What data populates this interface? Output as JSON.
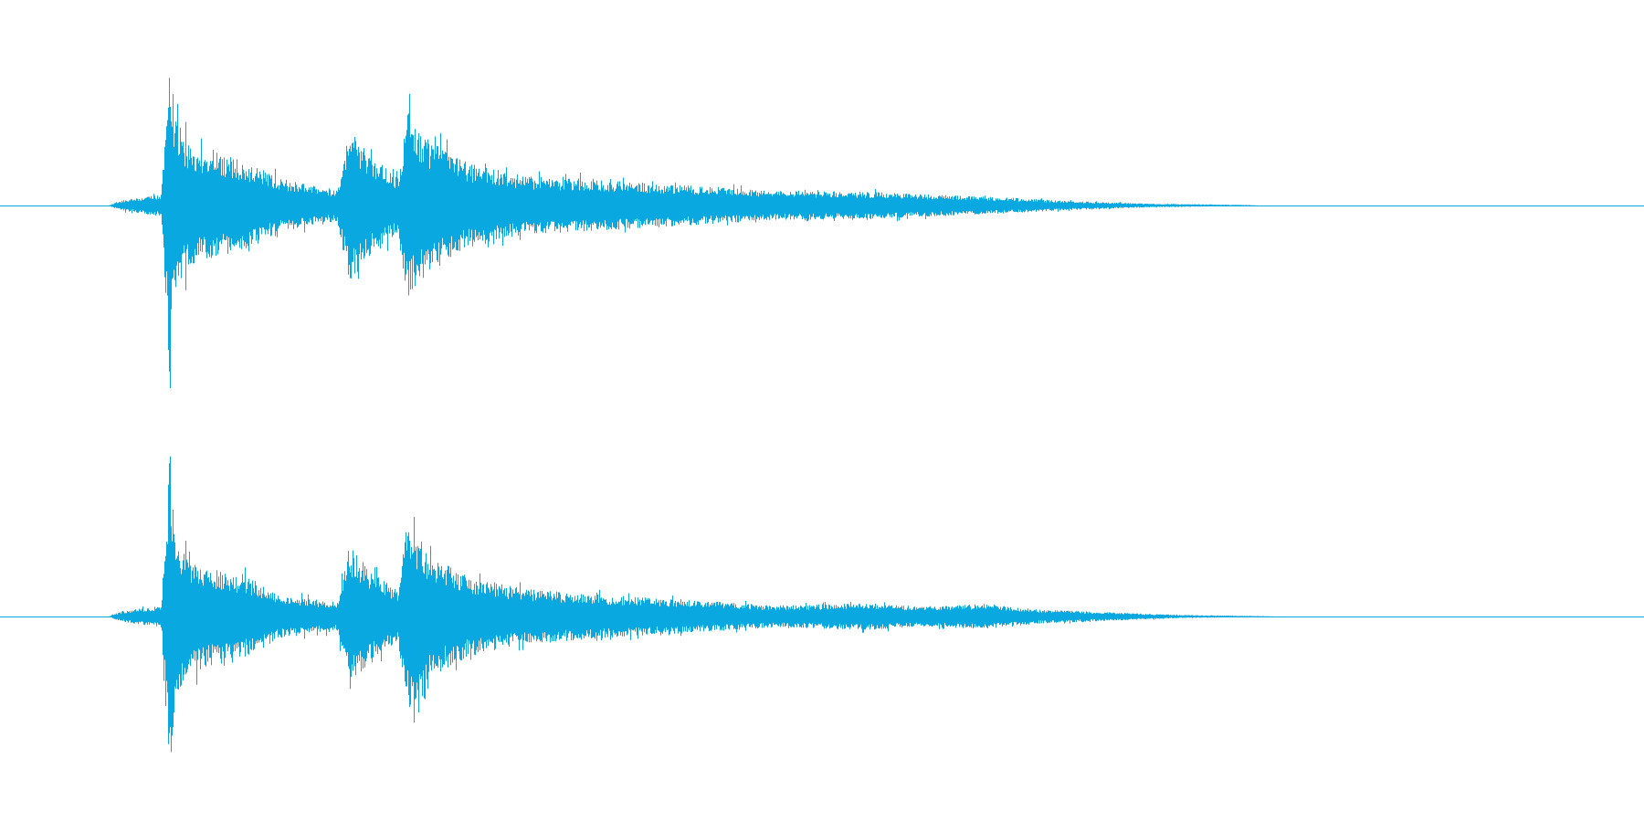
{
  "waveform": {
    "color": "#0aa8e0",
    "channels": [
      {
        "name": "",
        "envelope": [
          {
            "t": 0.0,
            "a": 0.0
          },
          {
            "t": 0.066,
            "a": 0.0
          },
          {
            "t": 0.068,
            "a": 0.01
          },
          {
            "t": 0.075,
            "a": 0.03
          },
          {
            "t": 0.098,
            "a": 0.06
          },
          {
            "t": 0.103,
            "a": 0.95
          },
          {
            "t": 0.106,
            "a": 0.48
          },
          {
            "t": 0.116,
            "a": 0.33
          },
          {
            "t": 0.13,
            "a": 0.29
          },
          {
            "t": 0.15,
            "a": 0.24
          },
          {
            "t": 0.17,
            "a": 0.15
          },
          {
            "t": 0.195,
            "a": 0.1
          },
          {
            "t": 0.205,
            "a": 0.09
          },
          {
            "t": 0.212,
            "a": 0.42
          },
          {
            "t": 0.225,
            "a": 0.28
          },
          {
            "t": 0.242,
            "a": 0.15
          },
          {
            "t": 0.247,
            "a": 0.52
          },
          {
            "t": 0.262,
            "a": 0.35
          },
          {
            "t": 0.285,
            "a": 0.23
          },
          {
            "t": 0.32,
            "a": 0.16
          },
          {
            "t": 0.365,
            "a": 0.14
          },
          {
            "t": 0.42,
            "a": 0.11
          },
          {
            "t": 0.47,
            "a": 0.08
          },
          {
            "t": 0.53,
            "a": 0.075
          },
          {
            "t": 0.58,
            "a": 0.055
          },
          {
            "t": 0.62,
            "a": 0.04
          },
          {
            "t": 0.65,
            "a": 0.025
          },
          {
            "t": 0.7,
            "a": 0.01
          },
          {
            "t": 0.76,
            "a": 0.003
          },
          {
            "t": 0.765,
            "a": 0.0
          },
          {
            "t": 1.0,
            "a": 0.0
          }
        ]
      },
      {
        "name": "",
        "envelope": [
          {
            "t": 0.0,
            "a": 0.0
          },
          {
            "t": 0.066,
            "a": 0.0
          },
          {
            "t": 0.068,
            "a": 0.01
          },
          {
            "t": 0.075,
            "a": 0.03
          },
          {
            "t": 0.098,
            "a": 0.06
          },
          {
            "t": 0.103,
            "a": 0.95
          },
          {
            "t": 0.106,
            "a": 0.46
          },
          {
            "t": 0.116,
            "a": 0.31
          },
          {
            "t": 0.13,
            "a": 0.27
          },
          {
            "t": 0.15,
            "a": 0.22
          },
          {
            "t": 0.17,
            "a": 0.12
          },
          {
            "t": 0.195,
            "a": 0.09
          },
          {
            "t": 0.205,
            "a": 0.08
          },
          {
            "t": 0.212,
            "a": 0.39
          },
          {
            "t": 0.225,
            "a": 0.26
          },
          {
            "t": 0.242,
            "a": 0.14
          },
          {
            "t": 0.247,
            "a": 0.53
          },
          {
            "t": 0.262,
            "a": 0.33
          },
          {
            "t": 0.285,
            "a": 0.22
          },
          {
            "t": 0.32,
            "a": 0.15
          },
          {
            "t": 0.365,
            "a": 0.12
          },
          {
            "t": 0.42,
            "a": 0.09
          },
          {
            "t": 0.47,
            "a": 0.06
          },
          {
            "t": 0.53,
            "a": 0.075
          },
          {
            "t": 0.56,
            "a": 0.055
          },
          {
            "t": 0.6,
            "a": 0.07
          },
          {
            "t": 0.63,
            "a": 0.04
          },
          {
            "t": 0.67,
            "a": 0.025
          },
          {
            "t": 0.72,
            "a": 0.008
          },
          {
            "t": 0.77,
            "a": 0.002
          },
          {
            "t": 0.775,
            "a": 0.0
          },
          {
            "t": 1.0,
            "a": 0.0
          }
        ]
      }
    ]
  }
}
